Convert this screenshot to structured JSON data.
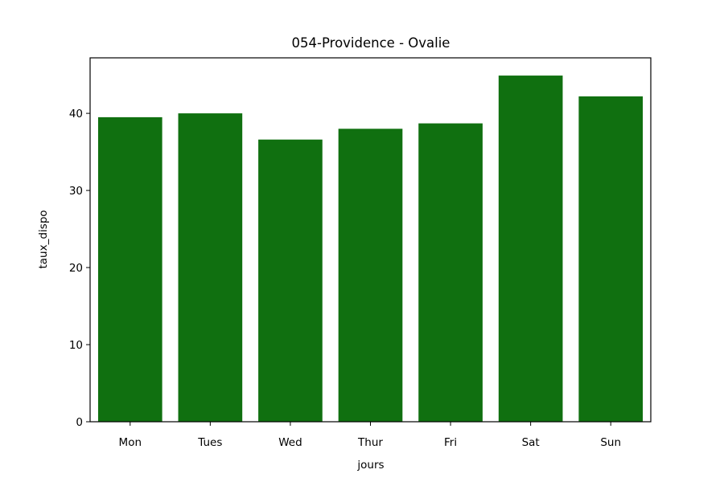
{
  "chart_data": {
    "type": "bar",
    "title": "054-Providence - Ovalie",
    "xlabel": "jours",
    "ylabel": "taux_dispo",
    "categories": [
      "Mon",
      "Tues",
      "Wed",
      "Thur",
      "Fri",
      "Sat",
      "Sun"
    ],
    "values": [
      39.5,
      40.0,
      36.6,
      38.0,
      38.7,
      44.9,
      42.2
    ],
    "ylim": [
      0,
      47.2
    ],
    "yticks": [
      0,
      10,
      20,
      30,
      40
    ],
    "bar_color": "#107010",
    "grid": false,
    "legend": "none"
  }
}
